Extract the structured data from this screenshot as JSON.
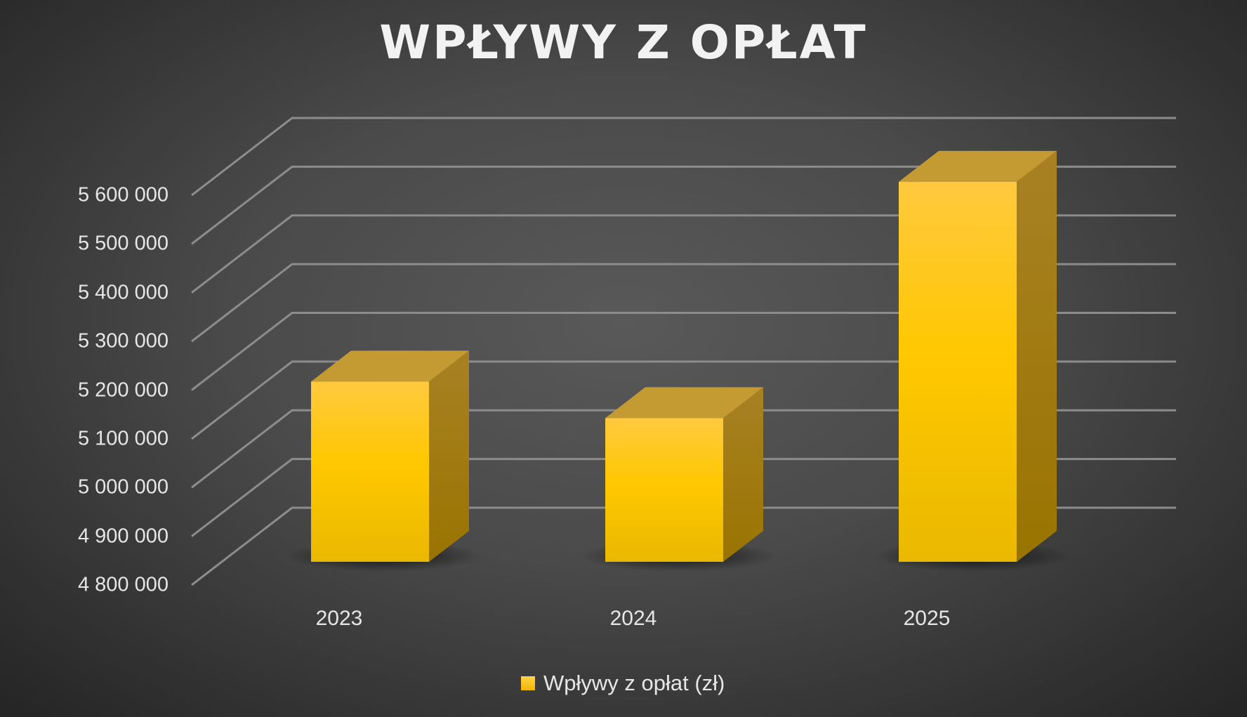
{
  "title": "WPŁYWY Z OPŁAT",
  "y_axis": {
    "ticks": [
      "5 600 000",
      "5 500 000",
      "5 400 000",
      "5 300 000",
      "5 200 000",
      "5 100 000",
      "5 000 000",
      "4 900 000",
      "4 800 000"
    ]
  },
  "x_axis": {
    "ticks": [
      "2023",
      "2024",
      "2025"
    ]
  },
  "legend": {
    "items": [
      {
        "label": "Wpływy z opłat (zł)",
        "color": "#FFC000"
      }
    ]
  },
  "colors": {
    "bar_front": "#FFC000",
    "bar_top": "#C49A32",
    "bar_side": "#A07A00",
    "gridline": "#8C8C8C",
    "text": "#E6E6E6"
  },
  "chart_data": {
    "type": "bar",
    "subtype": "3d-column",
    "title": "WPŁYWY Z OPŁAT",
    "categories": [
      "2023",
      "2024",
      "2025"
    ],
    "series": [
      {
        "name": "Wpływy z opłat (zł)",
        "values": [
          5170000,
          5095000,
          5580000
        ]
      }
    ],
    "xlabel": "",
    "ylabel": "",
    "ylim": [
      4800000,
      5600000
    ],
    "ytick_step": 100000,
    "grid": true,
    "legend_position": "bottom"
  }
}
